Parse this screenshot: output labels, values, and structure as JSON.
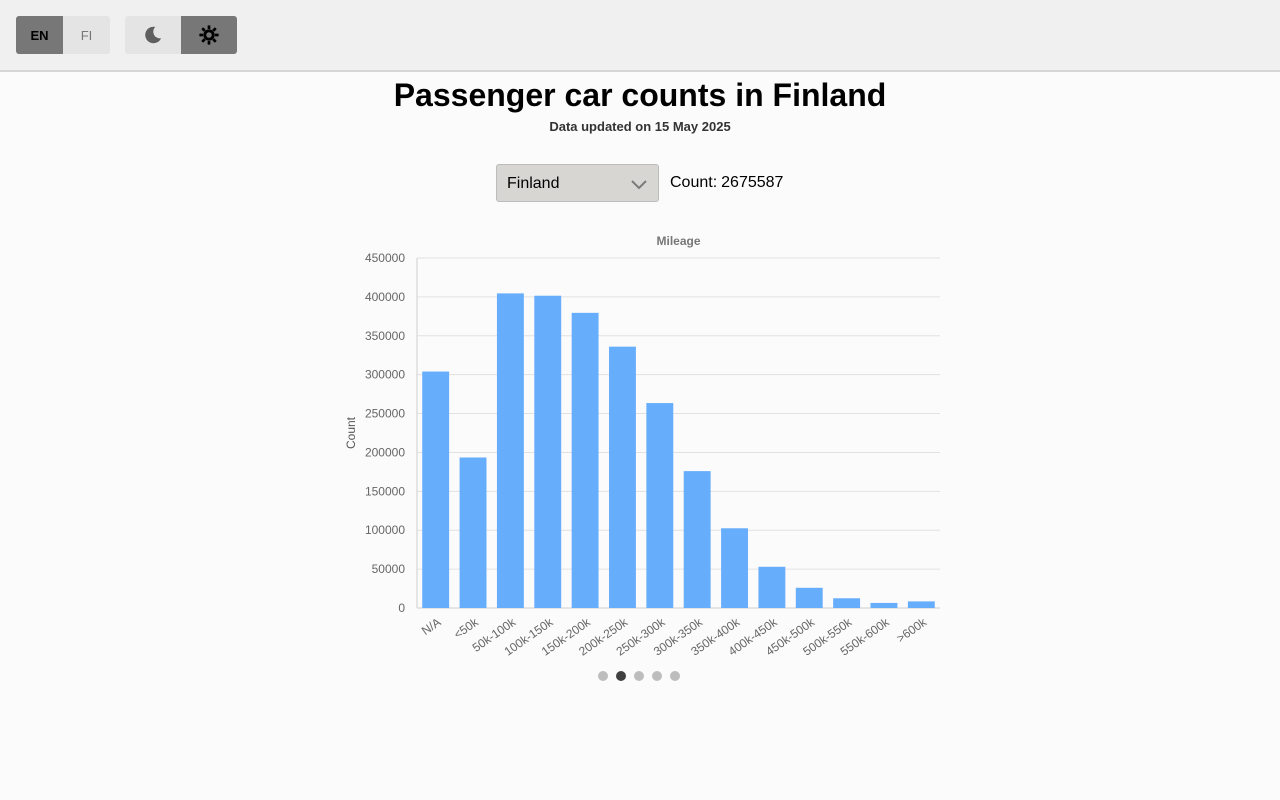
{
  "header": {
    "languages": [
      {
        "label": "EN",
        "active": true
      },
      {
        "label": "FI",
        "active": false
      }
    ],
    "theme": {
      "dark_icon": "moon-icon",
      "light_icon": "gear-sun-icon",
      "active": "light"
    }
  },
  "page": {
    "title": "Passenger car counts in Finland",
    "subtitle": "Data updated on 15 May 2025"
  },
  "region_select": {
    "value": "Finland"
  },
  "count": {
    "label": "Count:",
    "value": "2675587"
  },
  "chart_data": {
    "type": "bar",
    "title": "Mileage",
    "xlabel": "",
    "ylabel": "Count",
    "categories": [
      "N/A",
      "<50k",
      "50k-100k",
      "100k-150k",
      "150k-200k",
      "200k-250k",
      "250k-300k",
      "300k-350k",
      "350k-400k",
      "400k-450k",
      "450k-500k",
      "500k-550k",
      "550k-600k",
      ">600k"
    ],
    "values": [
      304000,
      193500,
      404500,
      401500,
      379500,
      336000,
      263500,
      176000,
      102500,
      53000,
      26000,
      12500,
      6500,
      8500
    ],
    "ylim": [
      0,
      450000
    ],
    "yticks": [
      0,
      50000,
      100000,
      150000,
      200000,
      250000,
      300000,
      350000,
      400000,
      450000
    ],
    "grid": true,
    "bar_color": "#66adfb"
  },
  "pager": {
    "total": 5,
    "active_index": 1
  }
}
